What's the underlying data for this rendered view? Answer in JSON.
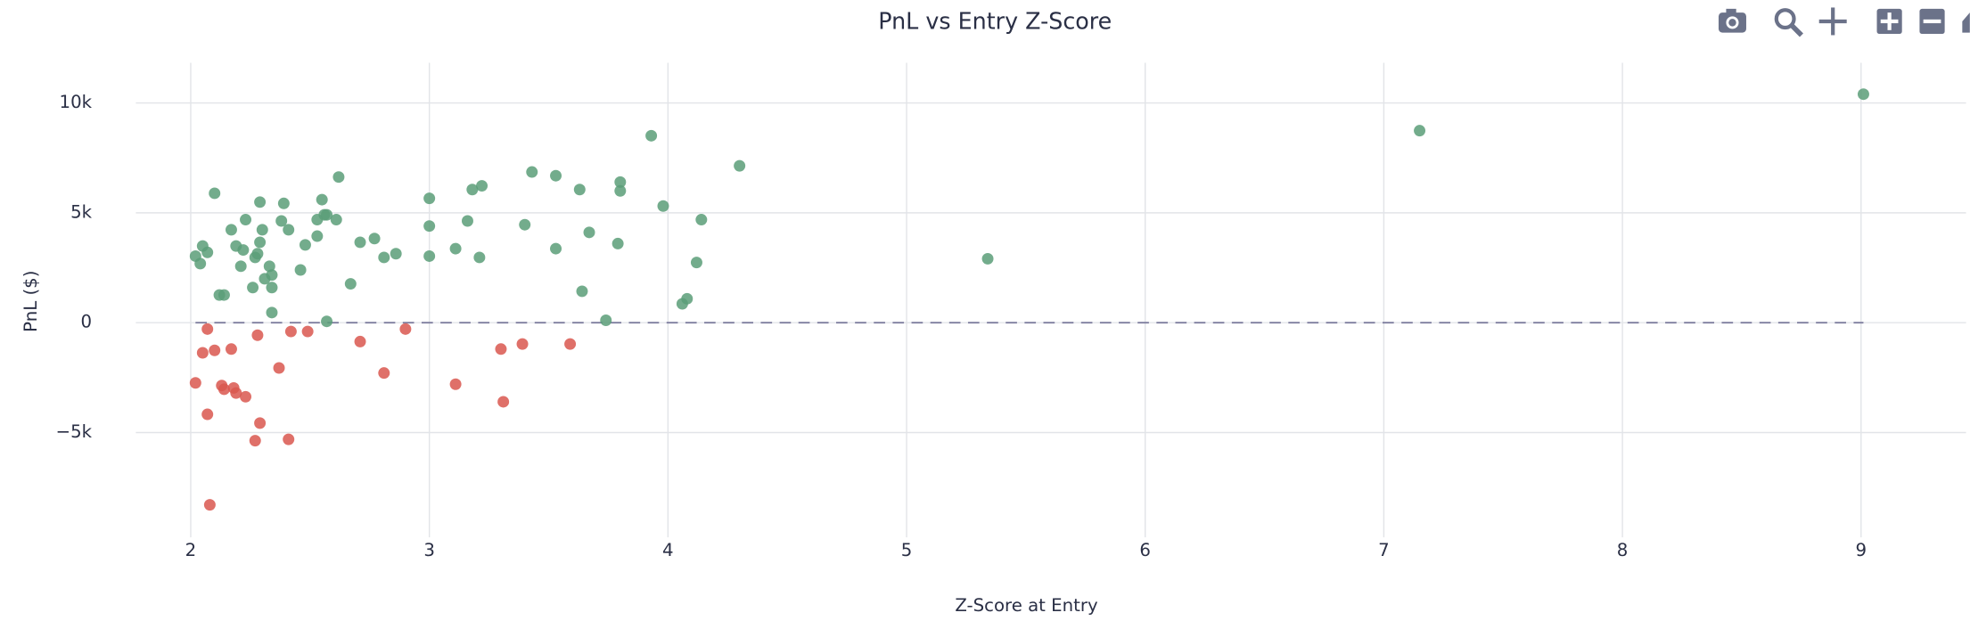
{
  "chart_data": {
    "type": "scatter",
    "title": "PnL vs Entry Z-Score",
    "x_label": "Z-Score at Entry",
    "y_label": "PnL ($)",
    "xlim": [
      1.77,
      9.44
    ],
    "ylim": [
      -9770,
      11830
    ],
    "xticks": [
      2,
      3,
      4,
      5,
      6,
      7,
      8,
      9
    ],
    "yticks": [
      {
        "value": -5000,
        "label": "−5k"
      },
      0,
      {
        "value": 5000,
        "label": "5k"
      },
      {
        "value": 10000,
        "label": "10k"
      }
    ],
    "grid": true,
    "hline": {
      "y": 0,
      "color": "#7f7f9f"
    },
    "series": [
      {
        "color": "#5a9e78",
        "x": [
          2.02,
          2.04,
          2.05,
          2.07,
          2.1,
          2.12,
          2.14,
          2.17,
          2.19,
          2.21,
          2.22,
          2.23,
          2.26,
          2.27,
          2.28,
          2.29,
          2.29,
          2.3,
          2.31,
          2.33,
          2.34,
          2.34,
          2.34,
          2.38,
          2.39,
          2.41,
          2.46,
          2.48,
          2.53,
          2.53,
          2.55,
          2.56,
          2.57,
          2.57,
          2.61,
          2.62,
          2.67,
          2.71,
          2.77,
          2.81,
          2.86,
          3.0,
          3.0,
          3.0,
          3.11,
          3.16,
          3.18,
          3.21,
          3.22,
          3.4,
          3.43,
          3.53,
          3.53,
          3.63,
          3.64,
          3.67,
          3.74,
          3.79,
          3.8,
          3.8,
          3.93,
          3.98,
          4.06,
          4.08,
          4.12,
          4.14,
          4.3,
          5.34,
          7.15,
          9.01
        ],
        "values": [
          3030,
          2690,
          3490,
          3200,
          5890,
          1260,
          1260,
          4230,
          3490,
          2570,
          3310,
          4690,
          1600,
          2970,
          3140,
          3660,
          5490,
          4230,
          2000,
          2570,
          1600,
          2170,
          460,
          4630,
          5430,
          4230,
          2400,
          3540,
          4690,
          3940,
          5600,
          4910,
          4910,
          60,
          4690,
          6630,
          1770,
          3660,
          3830,
          2970,
          3140,
          5660,
          4400,
          3030,
          3370,
          4630,
          6060,
          2970,
          6230,
          4460,
          6860,
          3370,
          6690,
          6060,
          1430,
          4110,
          110,
          3600,
          6400,
          6000,
          8510,
          5310,
          860,
          1090,
          2740,
          4690,
          7140,
          2910,
          8740,
          10400
        ]
      },
      {
        "color": "#d9574f",
        "x": [
          2.07,
          2.05,
          2.1,
          2.07,
          2.02,
          2.13,
          2.14,
          2.17,
          2.18,
          2.19,
          2.23,
          2.28,
          2.29,
          2.27,
          2.08,
          2.37,
          2.42,
          2.41,
          2.49,
          2.71,
          2.81,
          2.9,
          3.11,
          3.3,
          3.31,
          3.39,
          3.59
        ],
        "values": [
          -290,
          -1370,
          -1260,
          -4170,
          -2740,
          -2860,
          -3030,
          -1200,
          -2970,
          -3200,
          -3370,
          -570,
          -4570,
          -5370,
          -8290,
          -2060,
          -400,
          -5310,
          -400,
          -860,
          -2290,
          -290,
          -2800,
          -1200,
          -3600,
          -970,
          -970
        ]
      }
    ]
  }
}
